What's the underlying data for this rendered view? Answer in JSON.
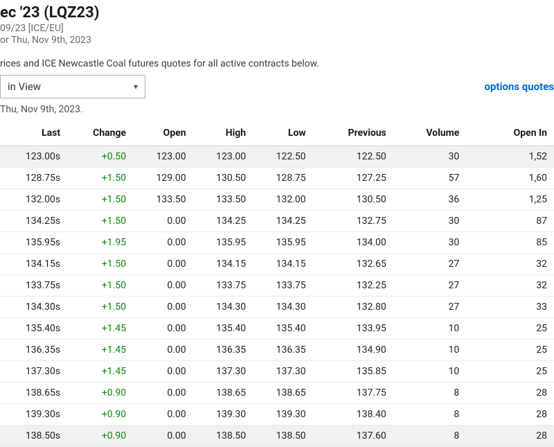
{
  "header": {
    "title": "ec '23 (LQZ23)",
    "subtitle1": "09/23 [ICE/EU]",
    "subtitle2": "or Thu, Nov 9th, 2023"
  },
  "description": "rices and ICE Newcastle Coal futures quotes for all active contracts below.",
  "dropdown": {
    "selected": "in View"
  },
  "options_link": "options quotes",
  "note": "Thu, Nov 9th, 2023.",
  "table": {
    "columns": [
      "Last",
      "Change",
      "Open",
      "High",
      "Low",
      "Previous",
      "Volume",
      "Open In"
    ],
    "rows": [
      {
        "highlight": true,
        "last": "123.00s",
        "change": "+0.50",
        "open": "123.00",
        "high": "123.00",
        "low": "122.50",
        "previous": "122.50",
        "volume": "30",
        "openint": "1,52"
      },
      {
        "highlight": false,
        "last": "128.75s",
        "change": "+1.50",
        "open": "129.00",
        "high": "130.50",
        "low": "128.75",
        "previous": "127.25",
        "volume": "57",
        "openint": "1,60"
      },
      {
        "highlight": false,
        "last": "132.00s",
        "change": "+1.50",
        "open": "133.50",
        "high": "133.50",
        "low": "132.00",
        "previous": "130.50",
        "volume": "36",
        "openint": "1,25"
      },
      {
        "highlight": false,
        "last": "134.25s",
        "change": "+1.50",
        "open": "0.00",
        "high": "134.25",
        "low": "134.25",
        "previous": "132.75",
        "volume": "30",
        "openint": "87"
      },
      {
        "highlight": false,
        "last": "135.95s",
        "change": "+1.95",
        "open": "0.00",
        "high": "135.95",
        "low": "135.95",
        "previous": "134.00",
        "volume": "30",
        "openint": "85"
      },
      {
        "highlight": false,
        "last": "134.15s",
        "change": "+1.50",
        "open": "0.00",
        "high": "134.15",
        "low": "134.15",
        "previous": "132.65",
        "volume": "27",
        "openint": "32"
      },
      {
        "highlight": false,
        "last": "133.75s",
        "change": "+1.50",
        "open": "0.00",
        "high": "133.75",
        "low": "133.75",
        "previous": "132.25",
        "volume": "27",
        "openint": "32"
      },
      {
        "highlight": false,
        "last": "134.30s",
        "change": "+1.50",
        "open": "0.00",
        "high": "134.30",
        "low": "134.30",
        "previous": "132.80",
        "volume": "27",
        "openint": "33"
      },
      {
        "highlight": false,
        "last": "135.40s",
        "change": "+1.45",
        "open": "0.00",
        "high": "135.40",
        "low": "135.40",
        "previous": "133.95",
        "volume": "10",
        "openint": "25"
      },
      {
        "highlight": false,
        "last": "136.35s",
        "change": "+1.45",
        "open": "0.00",
        "high": "136.35",
        "low": "136.35",
        "previous": "134.90",
        "volume": "10",
        "openint": "25"
      },
      {
        "highlight": false,
        "last": "137.30s",
        "change": "+1.45",
        "open": "0.00",
        "high": "137.30",
        "low": "137.30",
        "previous": "135.85",
        "volume": "10",
        "openint": "25"
      },
      {
        "highlight": false,
        "last": "138.65s",
        "change": "+0.90",
        "open": "0.00",
        "high": "138.65",
        "low": "138.65",
        "previous": "137.75",
        "volume": "8",
        "openint": "28"
      },
      {
        "highlight": false,
        "last": "139.30s",
        "change": "+0.90",
        "open": "0.00",
        "high": "139.30",
        "low": "139.30",
        "previous": "138.40",
        "volume": "8",
        "openint": "28"
      },
      {
        "highlight": true,
        "last": "138.50s",
        "change": "+0.90",
        "open": "0.00",
        "high": "138.50",
        "low": "138.50",
        "previous": "137.60",
        "volume": "8",
        "openint": "28"
      }
    ]
  }
}
